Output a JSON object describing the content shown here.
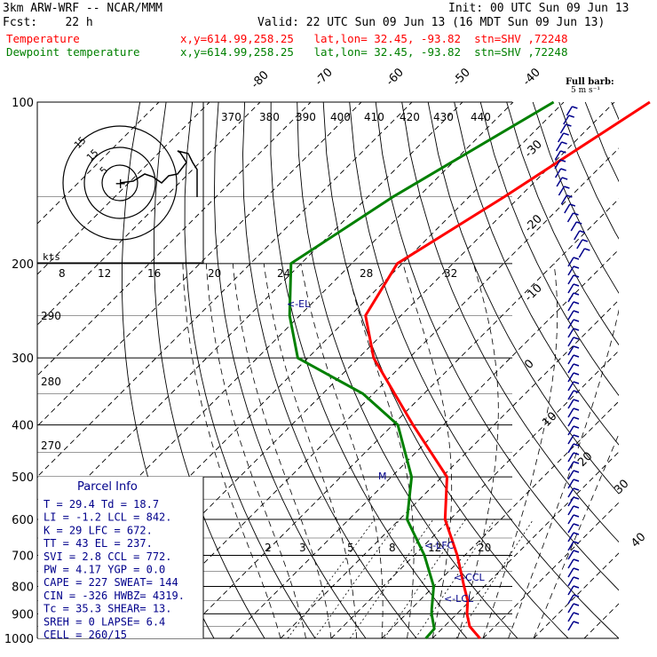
{
  "header": {
    "model": "3km ARW-WRF -- NCAR/MMM",
    "init": "Init: 00 UTC Sun 09 Jun 13",
    "fcst": "Fcst:    22 h",
    "valid": "Valid: 22 UTC Sun 09 Jun 13 (16 MDT Sun 09 Jun 13)",
    "temp_label": "Temperature",
    "dew_label": "Dewpoint temperature",
    "temp_info": "x,y=614.99,258.25   lat,lon= 32.45, -93.82  stn=SHV ,72248",
    "dew_info": "x,y=614.99,258.25   lat,lon= 32.45, -93.82  stn=SHV ,72248"
  },
  "colors": {
    "temperature": "#ff0000",
    "dewpoint": "#008000",
    "wind": "#00008b",
    "grid": "#000000",
    "label": "#00008b"
  },
  "chart_data": {
    "type": "line",
    "pressure_levels": [
      "100",
      "200",
      "300",
      "400",
      "500",
      "600",
      "700",
      "800",
      "900",
      "1000"
    ],
    "isotherm_labels": [
      "-80",
      "-70",
      "-60",
      "-50",
      "-40",
      "-30",
      "-20",
      "-10",
      "0",
      "10",
      "20",
      "30",
      "40"
    ],
    "theta_labels": [
      "370",
      "380",
      "390",
      "400",
      "410",
      "420",
      "430",
      "440"
    ],
    "theta_left_labels": [
      "290",
      "280",
      "270"
    ],
    "mixing_ratio_labels": [
      "2",
      "3",
      "5",
      "8",
      "12",
      "20"
    ],
    "wind_speed_labels": [
      "8",
      "12",
      "16",
      "20",
      "24",
      "28",
      "32"
    ],
    "kts_label": "kts",
    "el_label": "<-EL",
    "lfc_label": "<-LFC",
    "ccl_label": "<-CCL",
    "lcl_label": "<-LCL",
    "m_label": "M",
    "full_barb": "Full barb:",
    "full_barb_units": "5 m s⁻¹",
    "hodo_ring_labels": [
      "5",
      "15",
      "15"
    ],
    "series": [
      {
        "name": "Temperature",
        "points": [
          [
            100,
            -43
          ],
          [
            150,
            -53
          ],
          [
            200,
            -61
          ],
          [
            250,
            -57
          ],
          [
            300,
            -47
          ],
          [
            400,
            -26
          ],
          [
            500,
            -9
          ],
          [
            600,
            -1
          ],
          [
            700,
            8.5
          ],
          [
            800,
            16
          ],
          [
            850,
            19.5
          ],
          [
            900,
            22
          ],
          [
            950,
            25
          ],
          [
            1000,
            29.4
          ]
        ]
      },
      {
        "name": "Dewpoint temperature",
        "points": [
          [
            100,
            -62
          ],
          [
            150,
            -75
          ],
          [
            200,
            -82
          ],
          [
            250,
            -72
          ],
          [
            300,
            -62
          ],
          [
            350,
            -42
          ],
          [
            400,
            -29
          ],
          [
            500,
            -16
          ],
          [
            600,
            -8.5
          ],
          [
            700,
            2
          ],
          [
            800,
            10
          ],
          [
            880,
            14
          ],
          [
            900,
            15
          ],
          [
            960,
            18.5
          ],
          [
            1000,
            18.7
          ]
        ]
      }
    ]
  },
  "parcel": {
    "title": "Parcel Info",
    "rows": [
      "T  =    29.4  Td =  18.7",
      "LI =    -1.2  LCL =  842.",
      "K  =      29  LFC =  672.",
      "TT =      43  EL  =  237.",
      "SVI =    2.8  CCL =  772.",
      "PW =    4.17  YGP =   0.0",
      "CAPE =   227  SWEAT=  144",
      "CIN =   -326  HWBZ= 4319.",
      "Tc =    35.3  SHEAR=  13.",
      "SREH =     0  LAPSE=  6.4",
      "CELL = 260/15"
    ]
  }
}
